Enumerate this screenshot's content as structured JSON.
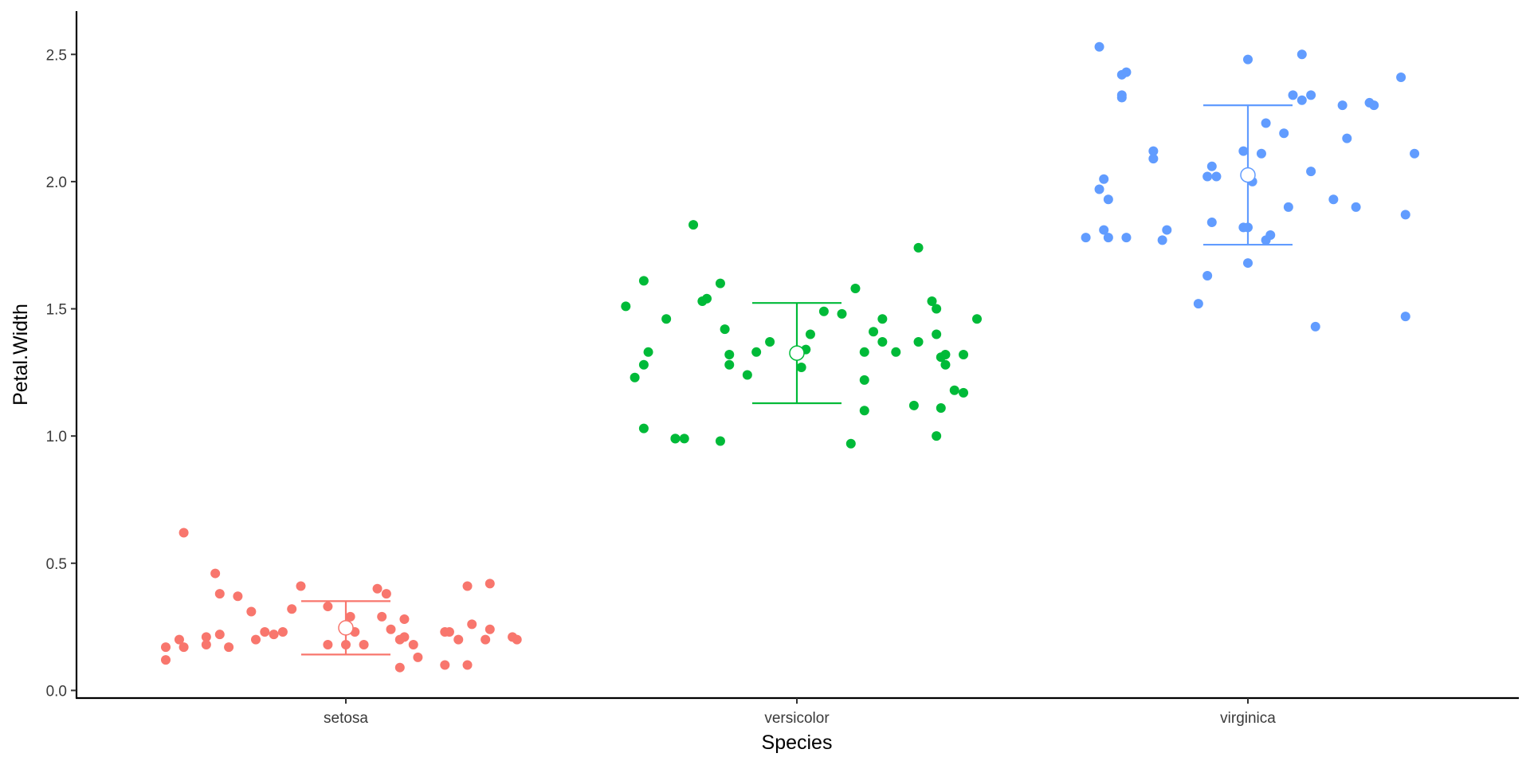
{
  "chart_data": {
    "type": "scatter",
    "title": "",
    "xlabel": "Species",
    "ylabel": "Petal.Width",
    "categories": [
      "setosa",
      "versicolor",
      "virginica"
    ],
    "ylim": [
      -0.03,
      2.67
    ],
    "yticks": [
      0.0,
      0.5,
      1.0,
      1.5,
      2.0,
      2.5
    ],
    "ytick_labels": [
      "0.0",
      "0.5",
      "1.0",
      "1.5",
      "2.0",
      "2.5"
    ],
    "grid": false,
    "legend": "none",
    "jitter_width": 0.4,
    "colors": {
      "setosa": "#F8766D",
      "versicolor": "#00BA38",
      "virginica": "#619CFF",
      "mean_fill": "#ffffff"
    },
    "series": [
      {
        "category": "setosa",
        "mean": 0.246,
        "lower": 0.141,
        "upper": 0.351,
        "points": [
          [
            -0.4,
            0.17
          ],
          [
            -0.4,
            0.12
          ],
          [
            -0.37,
            0.2
          ],
          [
            -0.36,
            0.17
          ],
          [
            -0.36,
            0.62
          ],
          [
            -0.31,
            0.18
          ],
          [
            -0.31,
            0.21
          ],
          [
            -0.29,
            0.46
          ],
          [
            -0.28,
            0.38
          ],
          [
            -0.28,
            0.22
          ],
          [
            -0.26,
            0.17
          ],
          [
            -0.24,
            0.37
          ],
          [
            -0.21,
            0.31
          ],
          [
            -0.2,
            0.2
          ],
          [
            -0.18,
            0.23
          ],
          [
            -0.16,
            0.22
          ],
          [
            -0.14,
            0.23
          ],
          [
            -0.12,
            0.32
          ],
          [
            -0.1,
            0.41
          ],
          [
            -0.04,
            0.33
          ],
          [
            -0.04,
            0.18
          ],
          [
            0.0,
            0.18
          ],
          [
            0.01,
            0.29
          ],
          [
            0.02,
            0.23
          ],
          [
            0.04,
            0.18
          ],
          [
            0.07,
            0.4
          ],
          [
            0.08,
            0.29
          ],
          [
            0.09,
            0.38
          ],
          [
            0.1,
            0.24
          ],
          [
            0.12,
            0.09
          ],
          [
            0.12,
            0.2
          ],
          [
            0.13,
            0.28
          ],
          [
            0.13,
            0.21
          ],
          [
            0.15,
            0.18
          ],
          [
            0.16,
            0.13
          ],
          [
            0.22,
            0.23
          ],
          [
            0.22,
            0.1
          ],
          [
            0.23,
            0.23
          ],
          [
            0.25,
            0.2
          ],
          [
            0.27,
            0.1
          ],
          [
            0.27,
            0.41
          ],
          [
            0.28,
            0.26
          ],
          [
            0.31,
            0.2
          ],
          [
            0.32,
            0.24
          ],
          [
            0.32,
            0.42
          ],
          [
            0.37,
            0.21
          ],
          [
            0.38,
            0.2
          ]
        ]
      },
      {
        "category": "versicolor",
        "mean": 1.326,
        "lower": 1.129,
        "upper": 1.523,
        "points": [
          [
            -0.38,
            1.51
          ],
          [
            -0.36,
            1.23
          ],
          [
            -0.34,
            1.03
          ],
          [
            -0.34,
            1.61
          ],
          [
            -0.34,
            1.28
          ],
          [
            -0.33,
            1.33
          ],
          [
            -0.29,
            1.46
          ],
          [
            -0.27,
            0.99
          ],
          [
            -0.27,
            0.99
          ],
          [
            -0.25,
            0.99
          ],
          [
            -0.23,
            1.83
          ],
          [
            -0.21,
            1.53
          ],
          [
            -0.2,
            1.54
          ],
          [
            -0.17,
            1.6
          ],
          [
            -0.17,
            0.98
          ],
          [
            -0.16,
            1.42
          ],
          [
            -0.15,
            1.28
          ],
          [
            -0.15,
            1.32
          ],
          [
            -0.11,
            1.24
          ],
          [
            -0.09,
            1.33
          ],
          [
            -0.06,
            1.37
          ],
          [
            0.01,
            1.27
          ],
          [
            0.02,
            1.34
          ],
          [
            0.03,
            1.4
          ],
          [
            0.06,
            1.49
          ],
          [
            0.1,
            1.48
          ],
          [
            0.12,
            0.97
          ],
          [
            0.13,
            1.58
          ],
          [
            0.15,
            1.33
          ],
          [
            0.15,
            1.22
          ],
          [
            0.15,
            1.1
          ],
          [
            0.17,
            1.41
          ],
          [
            0.19,
            1.37
          ],
          [
            0.19,
            1.46
          ],
          [
            0.22,
            1.33
          ],
          [
            0.26,
            1.12
          ],
          [
            0.27,
            1.37
          ],
          [
            0.27,
            1.74
          ],
          [
            0.3,
            1.53
          ],
          [
            0.31,
            1.0
          ],
          [
            0.31,
            1.5
          ],
          [
            0.31,
            1.4
          ],
          [
            0.32,
            1.11
          ],
          [
            0.32,
            1.31
          ],
          [
            0.33,
            1.28
          ],
          [
            0.33,
            1.32
          ],
          [
            0.35,
            1.18
          ],
          [
            0.37,
            1.32
          ],
          [
            0.37,
            1.17
          ],
          [
            0.4,
            1.46
          ]
        ]
      },
      {
        "category": "virginica",
        "mean": 2.026,
        "lower": 1.752,
        "upper": 2.3,
        "points": [
          [
            -0.36,
            1.78
          ],
          [
            -0.33,
            1.97
          ],
          [
            -0.33,
            2.53
          ],
          [
            -0.32,
            1.81
          ],
          [
            -0.32,
            2.01
          ],
          [
            -0.31,
            1.93
          ],
          [
            -0.31,
            1.78
          ],
          [
            -0.28,
            2.42
          ],
          [
            -0.28,
            2.33
          ],
          [
            -0.28,
            2.34
          ],
          [
            -0.27,
            1.78
          ],
          [
            -0.27,
            2.43
          ],
          [
            -0.21,
            2.12
          ],
          [
            -0.21,
            2.09
          ],
          [
            -0.19,
            1.77
          ],
          [
            -0.18,
            1.81
          ],
          [
            -0.11,
            1.52
          ],
          [
            -0.09,
            2.02
          ],
          [
            -0.09,
            1.63
          ],
          [
            -0.08,
            2.06
          ],
          [
            -0.08,
            1.84
          ],
          [
            -0.07,
            2.02
          ],
          [
            -0.01,
            2.12
          ],
          [
            -0.01,
            1.82
          ],
          [
            0.0,
            1.82
          ],
          [
            0.0,
            1.68
          ],
          [
            0.0,
            2.48
          ],
          [
            0.01,
            2.0
          ],
          [
            0.03,
            2.11
          ],
          [
            0.04,
            2.23
          ],
          [
            0.04,
            1.77
          ],
          [
            0.05,
            1.79
          ],
          [
            0.08,
            2.19
          ],
          [
            0.09,
            1.9
          ],
          [
            0.1,
            2.34
          ],
          [
            0.12,
            2.5
          ],
          [
            0.12,
            2.32
          ],
          [
            0.14,
            2.04
          ],
          [
            0.14,
            2.34
          ],
          [
            0.15,
            1.43
          ],
          [
            0.19,
            1.93
          ],
          [
            0.21,
            2.3
          ],
          [
            0.22,
            2.17
          ],
          [
            0.24,
            1.9
          ],
          [
            0.27,
            2.31
          ],
          [
            0.28,
            2.3
          ],
          [
            0.34,
            2.41
          ],
          [
            0.35,
            1.47
          ],
          [
            0.35,
            1.87
          ],
          [
            0.37,
            2.11
          ]
        ]
      }
    ]
  }
}
